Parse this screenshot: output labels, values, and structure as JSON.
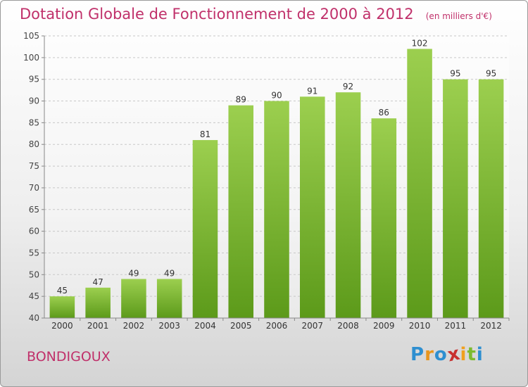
{
  "chart_data": {
    "type": "bar",
    "title": "Dotation Globale de Fonctionnement de 2000 à 2012",
    "subtitle": "(en milliers d'€)",
    "categories": [
      "2000",
      "2001",
      "2002",
      "2003",
      "2004",
      "2005",
      "2006",
      "2007",
      "2008",
      "2009",
      "2010",
      "2011",
      "2012"
    ],
    "values": [
      45,
      47,
      49,
      49,
      81,
      89,
      90,
      91,
      92,
      86,
      102,
      95,
      95
    ],
    "ylim": [
      40,
      105
    ],
    "yticks": [
      40,
      45,
      50,
      55,
      60,
      65,
      70,
      75,
      80,
      85,
      90,
      95,
      100,
      105
    ],
    "grid": true,
    "bar_color": "#7cbb2e"
  },
  "footer": {
    "commune": "BONDIGOUX",
    "logo_letters": [
      {
        "ch": "P",
        "color": "#2e8fd0"
      },
      {
        "ch": "r",
        "color": "#e8961e"
      },
      {
        "ch": "o",
        "color": "#2e8fd0"
      },
      {
        "ch": "x",
        "color": "#c8302f"
      },
      {
        "ch": "i",
        "color": "#f0a01e"
      },
      {
        "ch": "t",
        "color": "#7cbb2e"
      },
      {
        "ch": "i",
        "color": "#2e8fd0"
      }
    ]
  }
}
